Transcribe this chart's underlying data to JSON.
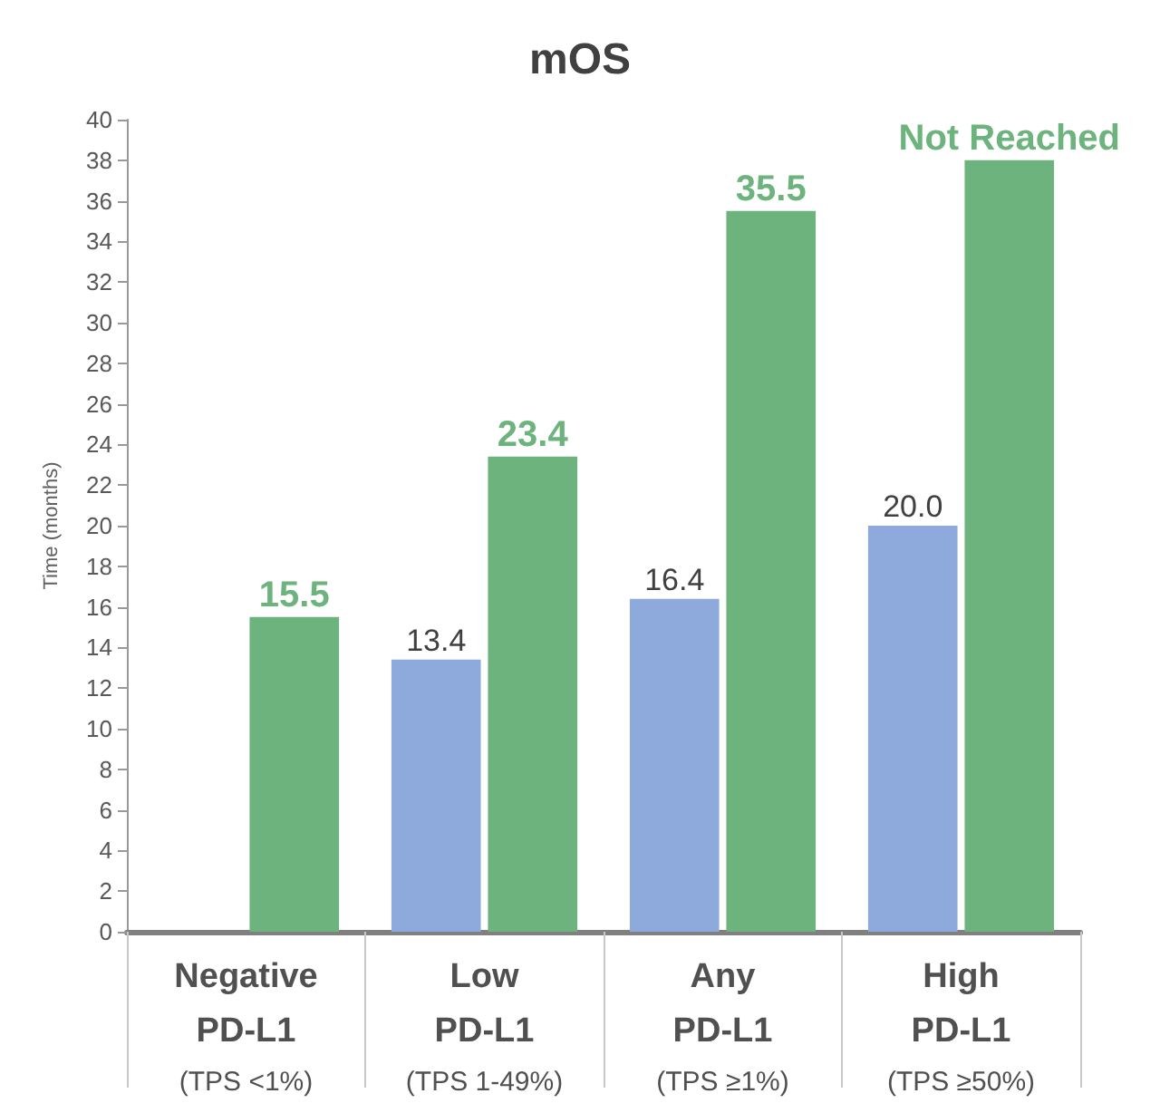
{
  "chart_data": {
    "type": "bar",
    "title": "mOS",
    "ylabel": "Time (months)",
    "categories": [
      "Negative\nPD-L1\n(TPS <1%)",
      "Low\nPD-L1\n(TPS 1-49%)",
      "Any\nPD-L1\n(TPS ≥1%)",
      "High\nPD-L1\n(TPS ≥50%)"
    ],
    "series": [
      {
        "color": "#8eaadc",
        "values": [
          null,
          13.4,
          16.4,
          20.0
        ],
        "value_labels": [
          null,
          "13.4",
          "16.4",
          "20.0"
        ]
      },
      {
        "color": "#6db37d",
        "values": [
          15.5,
          23.4,
          35.5,
          38
        ],
        "value_labels": [
          "15.5",
          "23.4",
          "35.5",
          "Not Reached"
        ]
      }
    ],
    "ylim": [
      0,
      40
    ],
    "yticks": [
      0,
      2,
      4,
      6,
      8,
      10,
      12,
      14,
      16,
      18,
      20,
      22,
      24,
      26,
      28,
      30,
      32,
      34,
      36,
      38,
      40
    ],
    "grid": false
  }
}
